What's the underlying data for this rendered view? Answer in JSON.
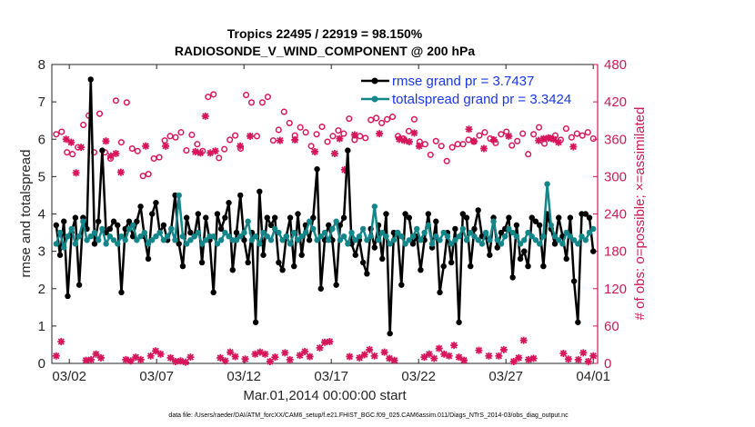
{
  "titles": {
    "line1": "Tropics 22495 / 22919 = 98.150%",
    "line2": "RADIOSONDE_V_WIND_COMPONENT @ 200 hPa"
  },
  "footer": "data file: /Users/raeder/DAI/ATM_forcXX/CAM6_setup/f.e21.FHIST_BGC.f09_025.CAM6assim.011/Diags_NTrS_2014-03/obs_diag_output.nc",
  "colors": {
    "rmse": "#000000",
    "spread": "#13868a",
    "obs": "#d6155a",
    "axis": "#262626"
  },
  "chart_data": {
    "type": "line",
    "x_start_label": "Mar.01,2014 00:00:00 start",
    "xlabel": "Mar.01,2014 00:00:00 start",
    "ylabel_left": "rmse and totalspread",
    "ylabel_right": "# of obs: o=possible; ×=assimilated",
    "xlim": [
      0,
      31.25
    ],
    "ylim_left": [
      0,
      8
    ],
    "ylim_right": [
      0,
      480
    ],
    "x_ticks": [
      {
        "x": 1,
        "label": "03/02"
      },
      {
        "x": 6,
        "label": "03/07"
      },
      {
        "x": 11,
        "label": "03/12"
      },
      {
        "x": 16,
        "label": "03/17"
      },
      {
        "x": 21,
        "label": "03/22"
      },
      {
        "x": 26,
        "label": "03/27"
      },
      {
        "x": 31,
        "label": "04/01"
      }
    ],
    "y_ticks_left": [
      "0",
      "1",
      "2",
      "3",
      "4",
      "5",
      "6",
      "7",
      "8"
    ],
    "y_ticks_right": [
      "0",
      "60",
      "120",
      "180",
      "240",
      "300",
      "360",
      "420",
      "480"
    ],
    "legend": {
      "rmse": "rmse grand pr = 3.7437",
      "spread": "totalspread grand pr = 3.3424",
      "position": "top-right"
    },
    "series": [
      {
        "name": "rmse",
        "axis": "left",
        "values": [
          3.7,
          2.9,
          3.8,
          1.8,
          3.5,
          3.9,
          2.1,
          3.9,
          3.6,
          7.6,
          3.2,
          3.8,
          5.7,
          3.5,
          3.6,
          3.8,
          3.7,
          1.9,
          3.6,
          3.8,
          3.4,
          3.8,
          4.2,
          3.4,
          2.8,
          4.0,
          4.3,
          3.5,
          3.7,
          3.3,
          3.6,
          4.5,
          3.2,
          2.6,
          3.9,
          3.5,
          3.4,
          4.0,
          2.7,
          3.9,
          3.3,
          1.9,
          4.0,
          3.6,
          3.9,
          4.3,
          2.5,
          3.5,
          4.5,
          3.3,
          2.7,
          3.5,
          1.1,
          4.6,
          2.9,
          3.9,
          3.7,
          3.9,
          2.7,
          2.5,
          3.4,
          3.9,
          2.6,
          4.0,
          2.9,
          3.7,
          3.3,
          3.9,
          5.2,
          2.0,
          3.3,
          3.7,
          3.3,
          2.1,
          3.7,
          3.9,
          5.7,
          3.2,
          2.9,
          3.3,
          2.7,
          2.4,
          3.6,
          3.1,
          3.7,
          2.8,
          4.0,
          0.8,
          3.5,
          3.5,
          2.1,
          4.0,
          3.9,
          3.2,
          3.4,
          2.5,
          3.3,
          4.0,
          3.1,
          3.8,
          1.9,
          2.6,
          3.5,
          2.7,
          3.6,
          1.1,
          4.0,
          3.9,
          2.6,
          3.6,
          4.1,
          3.4,
          3.4,
          2.9,
          3.9,
          3.1,
          3.5,
          3.6,
          3.9,
          2.3,
          3.7,
          2.8,
          3.0,
          2.6,
          3.9,
          3.8,
          3.7,
          2.6,
          4.0,
          3.6,
          3.2,
          3.9,
          3.4,
          2.8,
          3.9,
          2.2,
          1.1,
          4.0,
          4.0,
          3.9,
          3.0
        ]
      },
      {
        "name": "totalspread",
        "axis": "left",
        "values": [
          3.2,
          3.5,
          3.1,
          3.4,
          3.6,
          3.2,
          3.4,
          3.8,
          3.3,
          3.4,
          3.5,
          3.3,
          3.6,
          3.2,
          3.4,
          3.3,
          3.2,
          3.4,
          3.3,
          3.6,
          3.7,
          3.3,
          3.4,
          3.5,
          3.2,
          3.3,
          3.4,
          3.5,
          3.3,
          3.4,
          3.6,
          3.3,
          4.5,
          3.4,
          3.2,
          3.3,
          3.4,
          3.5,
          3.2,
          3.3,
          3.4,
          3.4,
          3.2,
          3.3,
          3.5,
          3.4,
          3.3,
          3.3,
          3.4,
          3.5,
          3.8,
          3.3,
          3.4,
          3.2,
          3.5,
          3.4,
          3.3,
          3.6,
          3.5,
          3.3,
          3.4,
          3.2,
          3.5,
          3.3,
          3.4,
          3.5,
          3.8,
          3.6,
          3.3,
          3.4,
          3.5,
          3.3,
          3.6,
          3.8,
          3.3,
          3.4,
          3.2,
          3.5,
          3.3,
          3.4,
          3.6,
          3.3,
          3.4,
          4.2,
          3.3,
          3.5,
          3.4,
          3.2,
          3.3,
          3.5,
          3.4,
          3.2,
          3.3,
          3.4,
          3.6,
          3.3,
          3.5,
          3.7,
          3.2,
          3.4,
          3.3,
          3.5,
          3.4,
          3.2,
          3.3,
          3.4,
          3.6,
          3.3,
          3.5,
          3.4,
          3.3,
          3.2,
          3.5,
          3.3,
          3.8,
          3.3,
          3.2,
          3.4,
          3.6,
          3.5,
          3.4,
          3.2,
          3.3,
          3.5,
          3.4,
          3.3,
          3.2,
          3.4,
          4.8,
          3.7,
          3.4,
          3.3,
          3.2,
          3.5,
          3.4,
          3.3,
          3.2,
          3.4,
          3.3,
          3.5,
          3.6
        ]
      },
      {
        "name": "obs_possible",
        "axis": "right",
        "values": [
          368,
          372,
          339,
          336,
          347,
          383,
          398,
          339,
          401,
          339,
          329,
          422,
          355,
          419,
          345,
          341,
          301,
          304,
          329,
          331,
          358,
          365,
          363,
          371,
          342,
          367,
          352,
          341,
          428,
          432,
          330,
          344,
          359,
          366,
          345,
          431,
          419,
          365,
          419,
          428,
          358,
          375,
          404,
          386,
          366,
          379,
          371,
          349,
          368,
          380,
          356,
          365,
          374,
          369,
          393,
          359,
          365,
          362,
          391,
          394,
          386,
          392,
          396,
          365,
          361,
          373,
          392,
          356,
          352,
          335,
          357,
          349,
          325,
          347,
          352,
          352,
          359,
          356,
          366,
          371,
          361,
          354,
          368,
          372,
          350,
          357,
          369,
          336,
          368,
          379,
          353,
          362,
          366,
          359,
          377,
          363,
          369,
          366,
          371,
          361
        ]
      },
      {
        "name": "obs_assimilated",
        "axis": "right",
        "values": [
          12,
          35,
          360,
          355,
          306,
          347,
          5,
          6,
          15,
          9,
          357,
          333,
          337,
          307,
          6,
          4,
          10,
          6,
          349,
          12,
          20,
          15,
          349,
          9,
          3,
          4,
          2,
          10,
          340,
          338,
          397,
          338,
          341,
          9,
          4,
          18,
          11,
          349,
          7,
          365,
          15,
          18,
          15,
          3,
          10,
          358,
          17,
          6,
          359,
          13,
          19,
          11,
          340,
          25,
          34,
          35,
          337,
          361,
          311,
          11,
          367,
          9,
          14,
          22,
          12,
          369,
          18,
          8,
          5,
          360,
          358,
          356,
          370,
          349,
          10,
          15,
          8,
          24,
          15,
          12,
          29,
          10,
          5,
          376,
          357,
          21,
          345,
          12,
          359,
          12,
          22,
          365,
          3,
          9,
          37,
          6,
          8,
          358,
          361,
          362,
          360,
          355,
          16,
          7,
          348,
          6,
          17,
          3,
          12
        ]
      }
    ]
  }
}
